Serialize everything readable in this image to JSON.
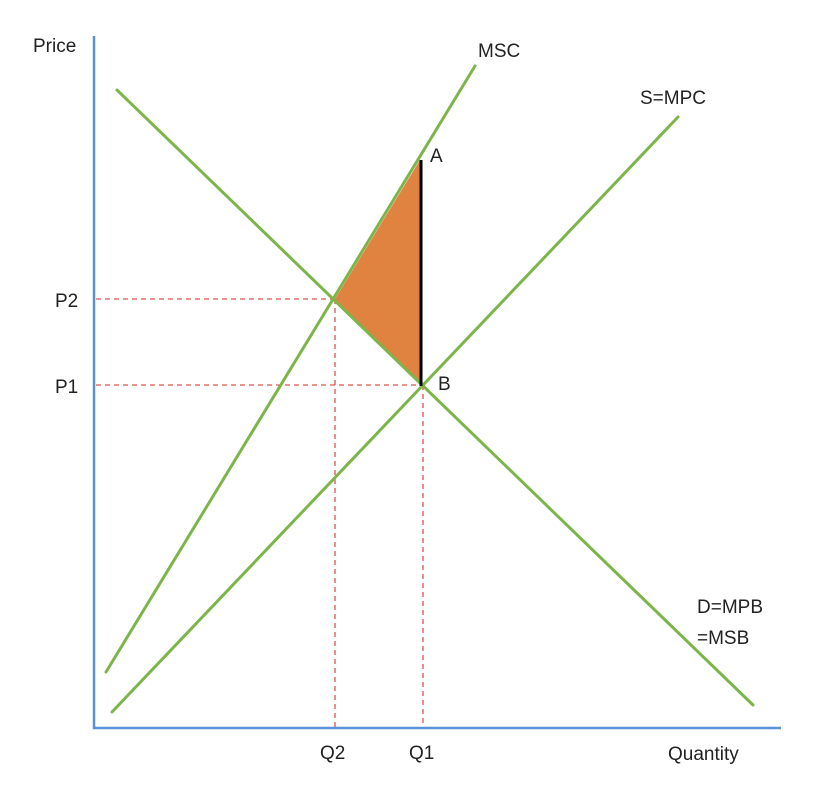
{
  "axes": {
    "y_label": "Price",
    "x_label": "Quantity"
  },
  "curves": {
    "msc": "MSC",
    "supply": "S=MPC",
    "demand_line1": "D=MPB",
    "demand_line2": "=MSB"
  },
  "price_labels": {
    "p2": "P2",
    "p1": "P1"
  },
  "quantity_labels": {
    "q2": "Q2",
    "q1": "Q1"
  },
  "points": {
    "a": "A",
    "b": "B"
  },
  "colors": {
    "axis": "#5b8fd6",
    "curves": "#7db54a",
    "guides": "#d9534f",
    "welfare_loss": "#e08240",
    "segment": "#000000"
  }
}
